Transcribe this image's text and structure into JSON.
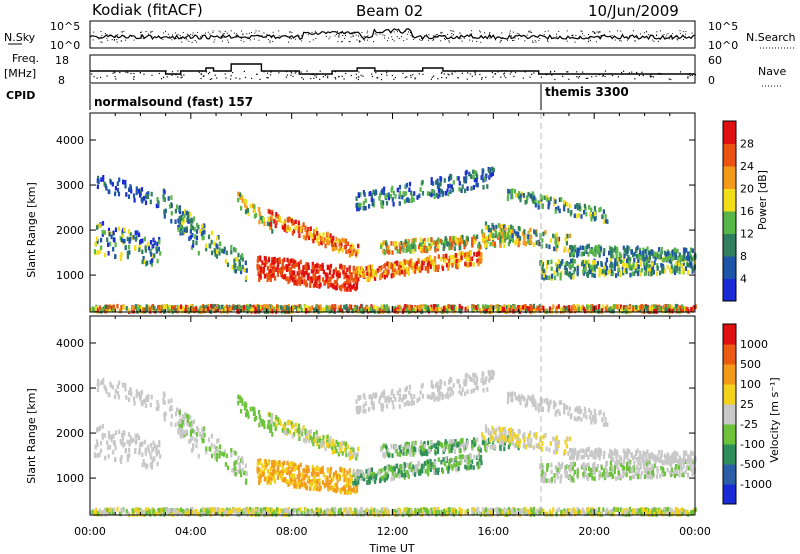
{
  "header": {
    "station": "Kodiak (fitACF)",
    "beam": "Beam 02",
    "date": "10/Jun/2009"
  },
  "top_panels": {
    "nsky_label": "N.Sky",
    "nsky_ticks": [
      "10^5",
      "10^0"
    ],
    "nsearch_label": "N.Search",
    "nsearch_ticks": [
      "10^5",
      "10^0"
    ],
    "freq_label_1": "Freq.",
    "freq_label_2": "[MHz]",
    "freq_ticks": [
      "18",
      "8"
    ],
    "nave_label": "Nave",
    "nave_ticks": [
      "60",
      "0"
    ],
    "cpid_label": "CPID",
    "cpid_mode_1": "normalsound (fast) 157",
    "cpid_mode_2": "themis 3300"
  },
  "chart_data": [
    {
      "type": "heatmap",
      "name": "power-panel",
      "ylabel": "Slant Range [km]",
      "xlabel": "Time UT",
      "xlim": [
        0,
        24
      ],
      "ylim": [
        180,
        4600
      ],
      "yticks": [
        "1000",
        "2000",
        "3000",
        "4000"
      ],
      "xticks": [
        "00:00",
        "04:00",
        "08:00",
        "12:00",
        "16:00",
        "20:00",
        "00:00"
      ],
      "colorbar": {
        "label": "Power [dB]",
        "ticks": [
          "4",
          "8",
          "12",
          "16",
          "20",
          "24",
          "28"
        ],
        "colors": [
          "#1a2bd6",
          "#1f55a8",
          "#2f7f5f",
          "#58b548",
          "#f2df1a",
          "#f39a1a",
          "#ea5410",
          "#e01010"
        ]
      }
    },
    {
      "type": "heatmap",
      "name": "velocity-panel",
      "ylabel": "Slant Range [km]",
      "xlabel": "Time UT",
      "xlim": [
        0,
        24
      ],
      "ylim": [
        180,
        4600
      ],
      "yticks": [
        "1000",
        "2000",
        "3000",
        "4000"
      ],
      "xticks": [
        "00:00",
        "04:00",
        "08:00",
        "12:00",
        "16:00",
        "20:00",
        "00:00"
      ],
      "colorbar": {
        "label": "Velocity [m s⁻¹]",
        "ticks": [
          "1000",
          "500",
          "100",
          "25",
          "-25",
          "-100",
          "-500",
          "-1000"
        ],
        "colors": [
          "#1a2bd6",
          "#2a5fa5",
          "#2f8f5a",
          "#6cc23a",
          "#c8c8c8",
          "#f2d21a",
          "#f39a1a",
          "#ea5a10",
          "#e01010"
        ]
      }
    }
  ]
}
